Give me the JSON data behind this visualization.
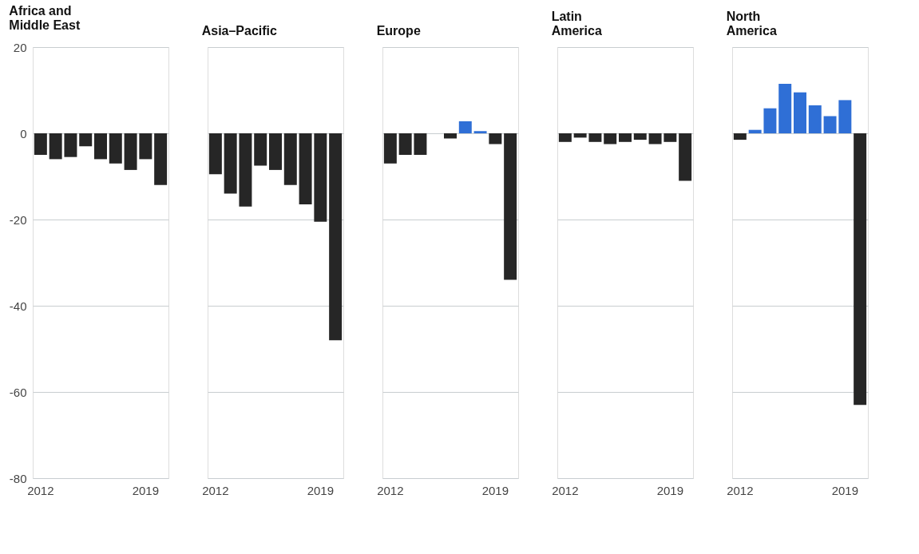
{
  "chart_data": [
    {
      "type": "bar",
      "title": "Africa and Middle East",
      "categories": [
        "2012",
        null,
        null,
        null,
        null,
        null,
        null,
        "2019",
        null
      ],
      "values": [
        -5,
        -6,
        -5.5,
        -3,
        -6,
        -7,
        -8.5,
        -6,
        -12
      ],
      "colors": [
        "#262626",
        "#262626",
        "#262626",
        "#262626",
        "#262626",
        "#262626",
        "#262626",
        "#262626",
        "#262626"
      ],
      "ylim": [
        -80,
        20
      ],
      "yticks": [
        -80,
        -60,
        -40,
        -20,
        0,
        20
      ],
      "grid": "y"
    },
    {
      "type": "bar",
      "title": "Asia–Pacific",
      "categories": [
        "2012",
        null,
        null,
        null,
        null,
        null,
        null,
        "2019",
        null
      ],
      "values": [
        -9.5,
        -14,
        -17,
        -7.5,
        -8.5,
        -12,
        -16.5,
        -20.5,
        -48
      ],
      "colors": [
        "#262626",
        "#262626",
        "#262626",
        "#262626",
        "#262626",
        "#262626",
        "#262626",
        "#262626",
        "#262626"
      ],
      "ylim": [
        -80,
        20
      ],
      "yticks": [
        -80,
        -60,
        -40,
        -20,
        0,
        20
      ],
      "grid": "y",
      "tick_labels": "x"
    },
    {
      "type": "bar",
      "title": "Europe",
      "categories": [
        "2012",
        null,
        null,
        null,
        null,
        null,
        null,
        "2019",
        null
      ],
      "values": [
        -7,
        -5,
        -5,
        null,
        -1.2,
        2.8,
        0.5,
        -2.5,
        -34
      ],
      "colors": [
        "#262626",
        "#262626",
        "#262626",
        "#262626",
        "#262626",
        "#2f6fd6",
        "#2f6fd6",
        "#262626",
        "#262626"
      ],
      "ylim": [
        -80,
        20
      ],
      "yticks": [
        -80,
        -60,
        -40,
        -20,
        0,
        20
      ],
      "grid": "y",
      "tick_labels": "x"
    },
    {
      "type": "bar",
      "title": "Latin America",
      "categories": [
        "2012",
        null,
        null,
        null,
        null,
        null,
        null,
        "2019",
        null
      ],
      "values": [
        -2,
        -1,
        -2,
        -2.5,
        -2,
        -1.5,
        -2.5,
        -2,
        -11
      ],
      "colors": [
        "#262626",
        "#262626",
        "#262626",
        "#262626",
        "#262626",
        "#262626",
        "#262626",
        "#262626",
        "#262626"
      ],
      "ylim": [
        -80,
        20
      ],
      "yticks": [
        -80,
        -60,
        -40,
        -20,
        0,
        20
      ],
      "grid": "y",
      "tick_labels": "x"
    },
    {
      "type": "bar",
      "title": "North America",
      "categories": [
        "2012",
        null,
        null,
        null,
        null,
        null,
        null,
        "2019",
        null
      ],
      "values": [
        -1.5,
        0.8,
        5.8,
        11.5,
        9.5,
        6.5,
        4,
        7.7,
        -63
      ],
      "colors": [
        "#262626",
        "#2f6fd6",
        "#2f6fd6",
        "#2f6fd6",
        "#2f6fd6",
        "#2f6fd6",
        "#2f6fd6",
        "#2f6fd6",
        "#262626"
      ],
      "ylim": [
        -80,
        20
      ],
      "yticks": [
        -80,
        -60,
        -40,
        -20,
        0,
        20
      ],
      "grid": "y",
      "tick_labels": "x"
    }
  ]
}
